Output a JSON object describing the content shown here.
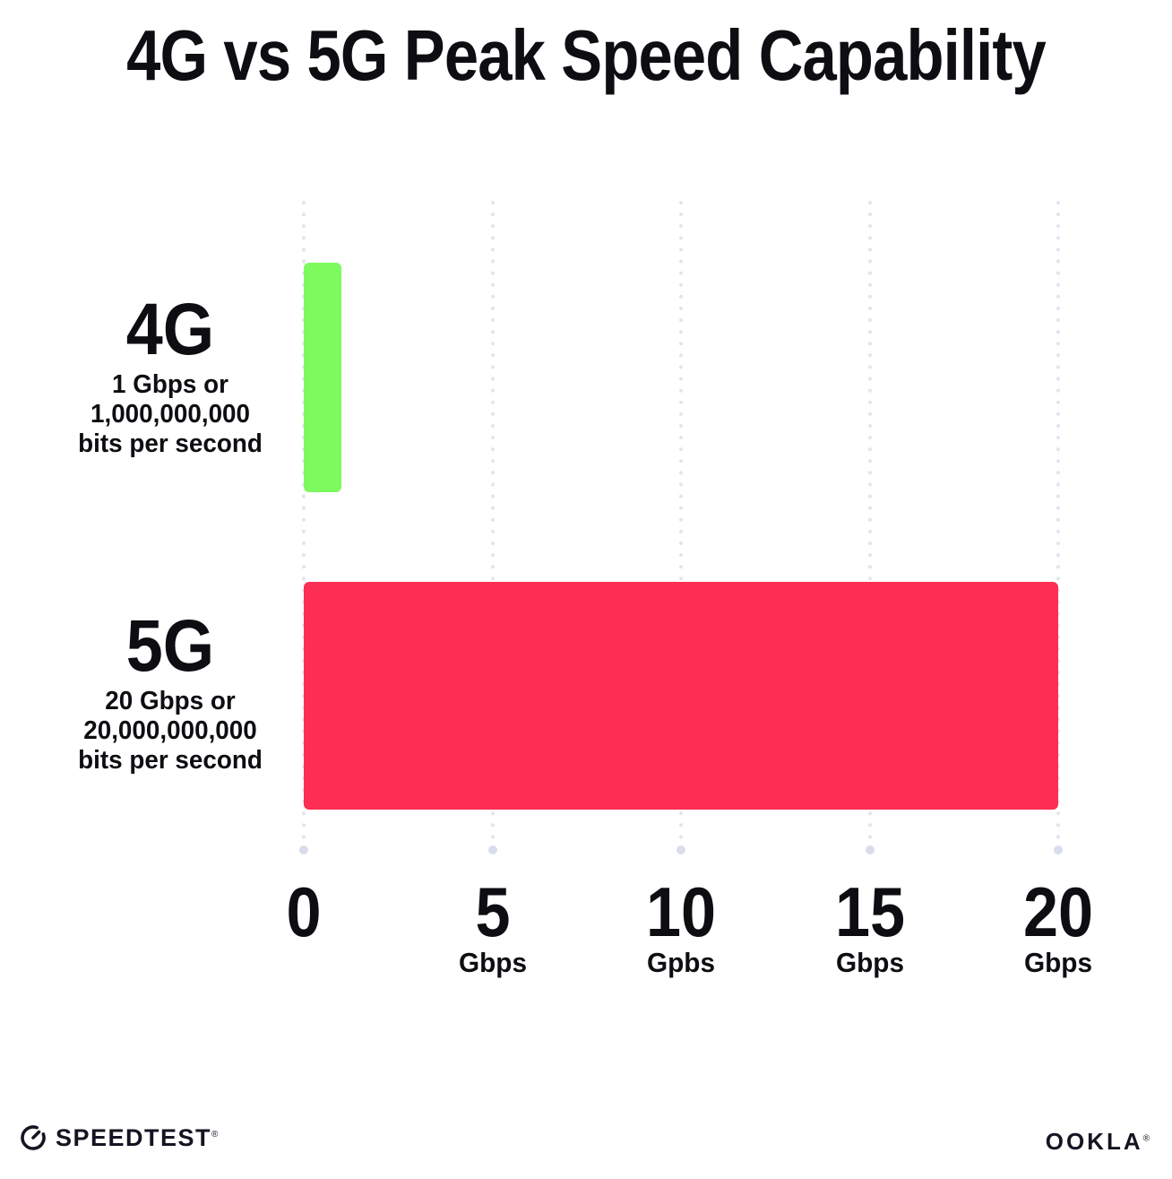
{
  "title": "4G vs 5G Peak Speed Capability",
  "chart_data": {
    "type": "bar",
    "orientation": "horizontal",
    "title": "4G vs 5G Peak Speed Capability",
    "categories": [
      "4G",
      "5G"
    ],
    "values": [
      1,
      20
    ],
    "value_unit": "Gbps",
    "xlim": [
      0,
      20
    ],
    "grid": "vertical-dotted",
    "legend": "none",
    "rows": [
      {
        "name": "4G",
        "value": 1,
        "color": "#7dfa5e",
        "desc_line1": "1 Gbps or",
        "desc_line2": "1,000,000,000",
        "desc_line3": "bits per second"
      },
      {
        "name": "5G",
        "value": 20,
        "color": "#fc2e53",
        "desc_line1": "20 Gbps or",
        "desc_line2": "20,000,000,000",
        "desc_line3": "bits per second"
      }
    ],
    "x_ticks": [
      {
        "label": "0",
        "unit": ""
      },
      {
        "label": "5",
        "unit": "Gbps"
      },
      {
        "label": "10",
        "unit": "Gpbs"
      },
      {
        "label": "15",
        "unit": "Gbps"
      },
      {
        "label": "20",
        "unit": "Gbps"
      }
    ]
  },
  "footer": {
    "speedtest": "SPEEDTEST",
    "speedtest_mark": "®",
    "ookla": "OOKLA",
    "ookla_mark": "®"
  },
  "colors": {
    "bar_4g": "#7dfa5e",
    "bar_5g": "#fc2e53",
    "gridline": "#e2e4f1",
    "gridline_end_dot": "#d9ddeb",
    "text": "#0d0d12",
    "background": "#ffffff"
  }
}
